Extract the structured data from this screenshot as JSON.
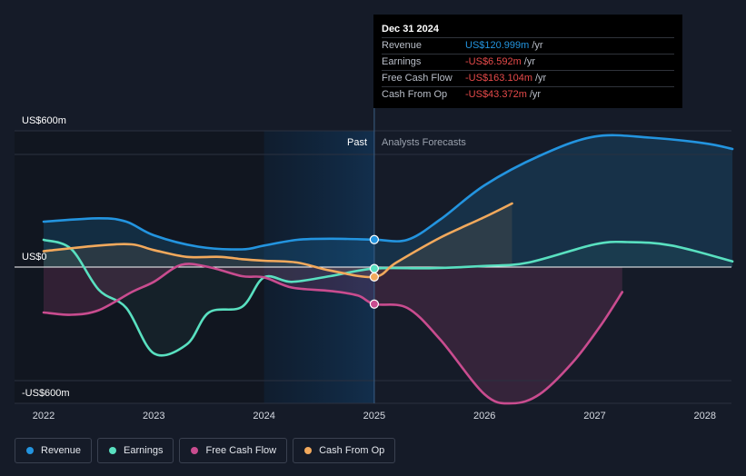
{
  "chart_data": {
    "type": "line",
    "y_axis": {
      "top_label": "US$600m",
      "zero_label": "US$0",
      "bottom_label": "-US$600m",
      "ylim": [
        -600,
        600
      ]
    },
    "x_axis": {
      "ticks": [
        "2022",
        "2023",
        "2024",
        "2025",
        "2026",
        "2027",
        "2028"
      ],
      "xlim": [
        2021.75,
        2028.25
      ]
    },
    "regions": {
      "past_label": "Past",
      "forecast_label": "Analysts Forecasts",
      "divider_x": 2025.0,
      "highlight_start_x": 2024.0
    },
    "series": [
      {
        "name": "Revenue",
        "color": "#2394df",
        "points": [
          [
            2022.0,
            200
          ],
          [
            2022.5,
            215
          ],
          [
            2022.75,
            200
          ],
          [
            2023.0,
            140
          ],
          [
            2023.4,
            90
          ],
          [
            2023.8,
            78
          ],
          [
            2024.0,
            95
          ],
          [
            2024.3,
            120
          ],
          [
            2024.6,
            125
          ],
          [
            2025.0,
            121
          ],
          [
            2025.3,
            120
          ],
          [
            2025.6,
            210
          ],
          [
            2026.0,
            360
          ],
          [
            2026.5,
            490
          ],
          [
            2027.0,
            575
          ],
          [
            2027.5,
            570
          ],
          [
            2028.0,
            545
          ],
          [
            2028.25,
            520
          ]
        ]
      },
      {
        "name": "Earnings",
        "color": "#59e0c0",
        "points": [
          [
            2022.0,
            120
          ],
          [
            2022.25,
            80
          ],
          [
            2022.5,
            -100
          ],
          [
            2022.75,
            -180
          ],
          [
            2023.0,
            -380
          ],
          [
            2023.3,
            -340
          ],
          [
            2023.5,
            -200
          ],
          [
            2023.8,
            -175
          ],
          [
            2024.0,
            -45
          ],
          [
            2024.25,
            -65
          ],
          [
            2024.6,
            -40
          ],
          [
            2025.0,
            -6.6
          ],
          [
            2025.5,
            -5
          ],
          [
            2026.0,
            5
          ],
          [
            2026.4,
            20
          ],
          [
            2027.0,
            100
          ],
          [
            2027.3,
            110
          ],
          [
            2027.7,
            95
          ],
          [
            2028.25,
            25
          ]
        ]
      },
      {
        "name": "Free Cash Flow",
        "color": "#c94c8f",
        "points": [
          [
            2022.0,
            -200
          ],
          [
            2022.25,
            -210
          ],
          [
            2022.5,
            -190
          ],
          [
            2022.8,
            -110
          ],
          [
            2023.0,
            -65
          ],
          [
            2023.25,
            10
          ],
          [
            2023.5,
            0
          ],
          [
            2023.8,
            -40
          ],
          [
            2024.0,
            -45
          ],
          [
            2024.25,
            -90
          ],
          [
            2024.6,
            -105
          ],
          [
            2024.85,
            -125
          ],
          [
            2025.0,
            -163.1
          ],
          [
            2025.3,
            -180
          ],
          [
            2025.6,
            -320
          ],
          [
            2026.0,
            -560
          ],
          [
            2026.25,
            -600
          ],
          [
            2026.5,
            -560
          ],
          [
            2026.8,
            -420
          ],
          [
            2027.05,
            -260
          ],
          [
            2027.25,
            -110
          ]
        ]
      },
      {
        "name": "Cash From Op",
        "color": "#f2a95c",
        "points": [
          [
            2022.0,
            70
          ],
          [
            2022.5,
            95
          ],
          [
            2022.8,
            100
          ],
          [
            2023.0,
            75
          ],
          [
            2023.3,
            45
          ],
          [
            2023.6,
            45
          ],
          [
            2023.8,
            35
          ],
          [
            2024.0,
            28
          ],
          [
            2024.3,
            20
          ],
          [
            2024.6,
            -15
          ],
          [
            2025.0,
            -43.4
          ],
          [
            2025.2,
            20
          ],
          [
            2025.6,
            130
          ],
          [
            2026.0,
            220
          ],
          [
            2026.25,
            280
          ]
        ]
      }
    ],
    "highlight_x": 2025.0,
    "tooltip": {
      "date": "Dec 31 2024",
      "rows": [
        {
          "name": "Revenue",
          "value": "US$120.999m",
          "unit": "/yr",
          "sign": "pos"
        },
        {
          "name": "Earnings",
          "value": "-US$6.592m",
          "unit": "/yr",
          "sign": "neg"
        },
        {
          "name": "Free Cash Flow",
          "value": "-US$163.104m",
          "unit": "/yr",
          "sign": "neg"
        },
        {
          "name": "Cash From Op",
          "value": "-US$43.372m",
          "unit": "/yr",
          "sign": "neg"
        }
      ]
    }
  },
  "legend": {
    "items": [
      {
        "label": "Revenue",
        "color": "#2394df"
      },
      {
        "label": "Earnings",
        "color": "#59e0c0"
      },
      {
        "label": "Free Cash Flow",
        "color": "#c94c8f"
      },
      {
        "label": "Cash From Op",
        "color": "#f2a95c"
      }
    ]
  }
}
